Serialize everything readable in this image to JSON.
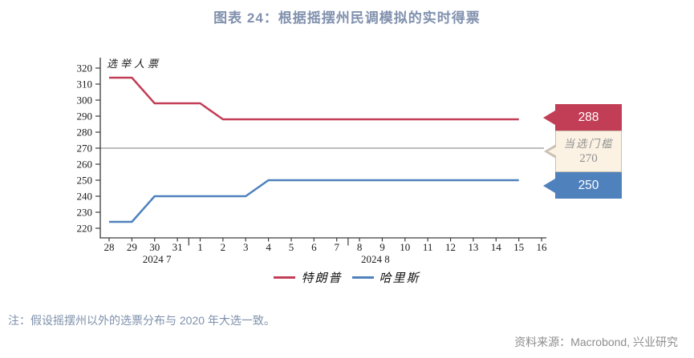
{
  "title": "图表 24：根据摇摆州民调模拟的实时得票",
  "footnote": "注：假设摇摆州以外的选票分布与 2020 年大选一致。",
  "source": "资料来源：Macrobond, 兴业研究",
  "chart_data": {
    "type": "line",
    "title": "图表 24：根据摇摆州民调模拟的实时得票",
    "xlabel": "",
    "ylabel": "选举人票",
    "ylim": [
      215,
      325
    ],
    "yticks": [
      220,
      230,
      240,
      250,
      260,
      270,
      280,
      290,
      300,
      310,
      320
    ],
    "grid": "off",
    "legend_position": "bottom",
    "x_tick_labels": [
      "28",
      "29",
      "30",
      "31",
      "1",
      "2",
      "3",
      "4",
      "5",
      "6",
      "7",
      "8",
      "9",
      "10",
      "11",
      "12",
      "13",
      "14",
      "15",
      "16"
    ],
    "month_labels": [
      {
        "text": "2024 7",
        "center_index": 2.1
      },
      {
        "text": "2024 8",
        "center_index": 11.7
      }
    ],
    "month_boundaries": [
      3.5,
      10.5
    ],
    "threshold": {
      "value": 270,
      "label_line1": "当选门槛",
      "label_line2": "270",
      "box_color": "#FBF2E4",
      "border_color": "#C8C0B0",
      "line_color": "#7A7A7A"
    },
    "series": [
      {
        "name": "特朗普",
        "color": "#C23E56",
        "end_label": "288",
        "values": [
          314,
          314,
          298,
          298,
          298,
          288,
          288,
          288,
          288,
          288,
          288,
          288,
          288,
          288,
          288,
          288,
          288,
          288,
          288
        ]
      },
      {
        "name": "哈里斯",
        "color": "#4F81BD",
        "end_label": "250",
        "values": [
          224,
          224,
          240,
          240,
          240,
          240,
          240,
          250,
          250,
          250,
          250,
          250,
          250,
          250,
          250,
          250,
          250,
          250,
          250
        ]
      }
    ]
  }
}
